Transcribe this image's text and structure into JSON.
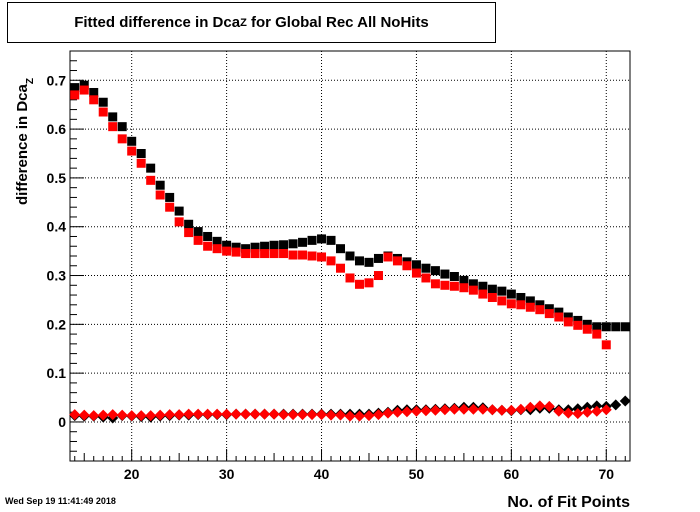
{
  "title": {
    "main": "Fitted difference in Dca",
    "sub": "Z",
    "rest": " for Global Rec All NoHits"
  },
  "footer_timestamp": "Wed Sep 19 11:41:49 2018",
  "chart_data": {
    "type": "scatter",
    "xlabel": "No. of Fit Points",
    "ylabel": "difference in Dca",
    "ylabel_sub": "Z",
    "xlim": [
      13.5,
      72.5
    ],
    "ylim": [
      -0.08,
      0.76
    ],
    "xticks": [
      20,
      30,
      40,
      50,
      60,
      70
    ],
    "yticks": [
      0,
      0.1,
      0.2,
      0.3,
      0.4,
      0.5,
      0.6,
      0.7
    ],
    "grid": true,
    "series": [
      {
        "color": "#000000",
        "marker": "square",
        "x": [
          14,
          15,
          16,
          17,
          18,
          19,
          20,
          21,
          22,
          23,
          24,
          25,
          26,
          27,
          28,
          29,
          30,
          31,
          32,
          33,
          34,
          35,
          36,
          37,
          38,
          39,
          40,
          41,
          42,
          43,
          44,
          45,
          46,
          47,
          48,
          49,
          50,
          51,
          52,
          53,
          54,
          55,
          56,
          57,
          58,
          59,
          60,
          61,
          62,
          63,
          64,
          65,
          66,
          67,
          68,
          69,
          70,
          71,
          72
        ],
        "values": [
          0.685,
          0.69,
          0.675,
          0.655,
          0.625,
          0.605,
          0.575,
          0.55,
          0.52,
          0.485,
          0.46,
          0.432,
          0.405,
          0.39,
          0.38,
          0.37,
          0.362,
          0.358,
          0.355,
          0.358,
          0.36,
          0.362,
          0.363,
          0.365,
          0.368,
          0.372,
          0.375,
          0.372,
          0.355,
          0.34,
          0.33,
          0.327,
          0.335,
          0.34,
          0.335,
          0.328,
          0.322,
          0.315,
          0.31,
          0.303,
          0.298,
          0.29,
          0.283,
          0.278,
          0.272,
          0.268,
          0.262,
          0.255,
          0.248,
          0.24,
          0.232,
          0.225,
          0.215,
          0.208,
          0.2,
          0.195,
          0.195,
          0.195,
          0.195
        ]
      },
      {
        "color": "#ff0000",
        "marker": "square",
        "x": [
          14,
          15,
          16,
          17,
          18,
          19,
          20,
          21,
          22,
          23,
          24,
          25,
          26,
          27,
          28,
          29,
          30,
          31,
          32,
          33,
          34,
          35,
          36,
          37,
          38,
          39,
          40,
          41,
          42,
          43,
          44,
          45,
          46,
          47,
          48,
          49,
          50,
          51,
          52,
          53,
          54,
          55,
          56,
          57,
          58,
          59,
          60,
          61,
          62,
          63,
          64,
          65,
          66,
          67,
          68,
          69,
          70
        ],
        "values": [
          0.67,
          0.68,
          0.66,
          0.635,
          0.605,
          0.58,
          0.555,
          0.53,
          0.495,
          0.465,
          0.44,
          0.41,
          0.388,
          0.372,
          0.36,
          0.355,
          0.35,
          0.348,
          0.345,
          0.345,
          0.345,
          0.345,
          0.345,
          0.342,
          0.342,
          0.34,
          0.338,
          0.33,
          0.315,
          0.295,
          0.282,
          0.285,
          0.3,
          0.338,
          0.33,
          0.32,
          0.305,
          0.295,
          0.283,
          0.28,
          0.278,
          0.275,
          0.27,
          0.262,
          0.255,
          0.248,
          0.242,
          0.24,
          0.235,
          0.23,
          0.222,
          0.215,
          0.205,
          0.198,
          0.19,
          0.18,
          0.158
        ]
      },
      {
        "color": "#000000",
        "marker": "diamond",
        "x": [
          14,
          15,
          16,
          17,
          18,
          19,
          20,
          21,
          22,
          23,
          24,
          25,
          26,
          27,
          28,
          29,
          30,
          31,
          32,
          33,
          34,
          35,
          36,
          37,
          38,
          39,
          40,
          41,
          42,
          43,
          44,
          45,
          46,
          47,
          48,
          49,
          50,
          51,
          52,
          53,
          54,
          55,
          56,
          57,
          58,
          59,
          60,
          61,
          62,
          63,
          64,
          65,
          66,
          67,
          68,
          69,
          70,
          71,
          72
        ],
        "values": [
          0.013,
          0.012,
          0.012,
          0.01,
          0.008,
          0.013,
          0.012,
          0.011,
          0.01,
          0.012,
          0.013,
          0.014,
          0.014,
          0.015,
          0.015,
          0.015,
          0.015,
          0.016,
          0.016,
          0.016,
          0.016,
          0.016,
          0.016,
          0.016,
          0.016,
          0.016,
          0.016,
          0.016,
          0.016,
          0.016,
          0.016,
          0.016,
          0.018,
          0.02,
          0.024,
          0.025,
          0.025,
          0.025,
          0.026,
          0.027,
          0.028,
          0.03,
          0.03,
          0.029,
          0.025,
          0.024,
          0.023,
          0.025,
          0.025,
          0.028,
          0.028,
          0.025,
          0.025,
          0.027,
          0.03,
          0.033,
          0.032,
          0.035,
          0.043
        ]
      },
      {
        "color": "#ff0000",
        "marker": "diamond",
        "x": [
          14,
          15,
          16,
          17,
          18,
          19,
          20,
          21,
          22,
          23,
          24,
          25,
          26,
          27,
          28,
          29,
          30,
          31,
          32,
          33,
          34,
          35,
          36,
          37,
          38,
          39,
          40,
          41,
          42,
          43,
          44,
          45,
          46,
          47,
          48,
          49,
          50,
          51,
          52,
          53,
          54,
          55,
          56,
          57,
          58,
          59,
          60,
          61,
          62,
          63,
          64,
          65,
          66,
          67,
          68,
          69,
          70
        ],
        "values": [
          0.015,
          0.014,
          0.013,
          0.014,
          0.015,
          0.014,
          0.013,
          0.013,
          0.013,
          0.014,
          0.015,
          0.015,
          0.016,
          0.016,
          0.016,
          0.016,
          0.016,
          0.016,
          0.016,
          0.016,
          0.016,
          0.016,
          0.015,
          0.015,
          0.015,
          0.015,
          0.015,
          0.014,
          0.014,
          0.012,
          0.012,
          0.013,
          0.015,
          0.018,
          0.02,
          0.021,
          0.022,
          0.023,
          0.024,
          0.025,
          0.026,
          0.026,
          0.026,
          0.026,
          0.025,
          0.024,
          0.024,
          0.026,
          0.03,
          0.033,
          0.032,
          0.022,
          0.018,
          0.017,
          0.02,
          0.022,
          0.025
        ]
      }
    ]
  }
}
